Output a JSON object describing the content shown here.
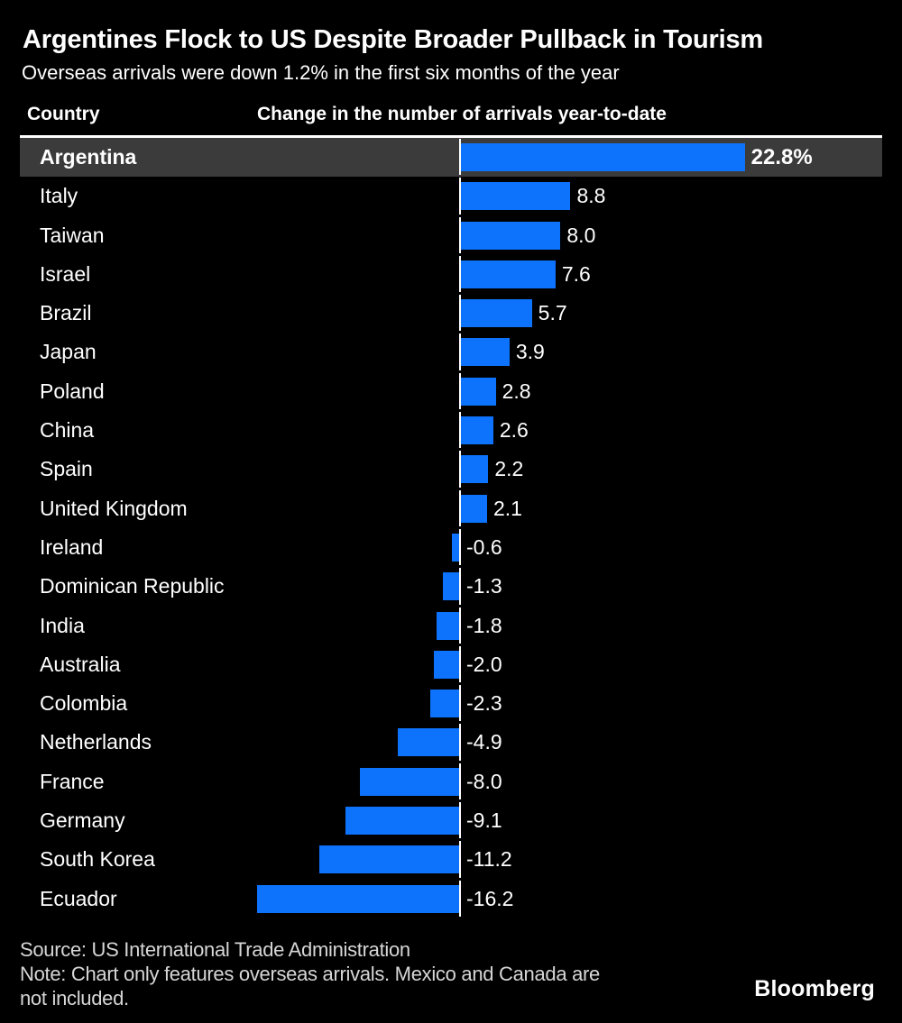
{
  "chart_data": {
    "type": "bar",
    "orientation": "horizontal",
    "title": "Argentines Flock to US Despite Broader Pullback in Tourism",
    "subtitle": "Overseas arrivals were down 1.2% in the first six months of the year",
    "country_header": "Country",
    "value_header": "Change in the number of arrivals year-to-date",
    "unit": "%",
    "xlim": [
      -16.2,
      22.8
    ],
    "legend": "none",
    "grid": "zero-baseline-only",
    "categories": [
      "Argentina",
      "Italy",
      "Taiwan",
      "Israel",
      "Brazil",
      "Japan",
      "Poland",
      "China",
      "Spain",
      "United Kingdom",
      "Ireland",
      "Dominican Republic",
      "India",
      "Australia",
      "Colombia",
      "Netherlands",
      "France",
      "Germany",
      "South Korea",
      "Ecuador"
    ],
    "values": [
      22.8,
      8.8,
      8.0,
      7.6,
      5.7,
      3.9,
      2.8,
      2.6,
      2.2,
      2.1,
      -0.6,
      -1.3,
      -1.8,
      -2.0,
      -2.3,
      -4.9,
      -8.0,
      -9.1,
      -11.2,
      -16.2
    ],
    "value_labels": [
      "22.8%",
      "8.8",
      "8.0",
      "7.6",
      "5.7",
      "3.9",
      "2.8",
      "2.6",
      "2.2",
      "2.1",
      "-0.6",
      "-1.3",
      "-1.8",
      "-2.0",
      "-2.3",
      "-4.9",
      "-8.0",
      "-9.1",
      "-11.2",
      "-16.2"
    ],
    "highlight_category": "Argentina",
    "colors": {
      "bar": "#0d73fc",
      "highlight_row": "#3b3b3b",
      "background": "#000000",
      "text": "#ffffff",
      "muted_text": "#d6d6d6"
    }
  },
  "footer": {
    "source": "Source: US International Trade Administration",
    "note_lines": [
      "Note: Chart only features overseas arrivals. Mexico and Canada are",
      "not included."
    ],
    "brand": "Bloomberg"
  }
}
